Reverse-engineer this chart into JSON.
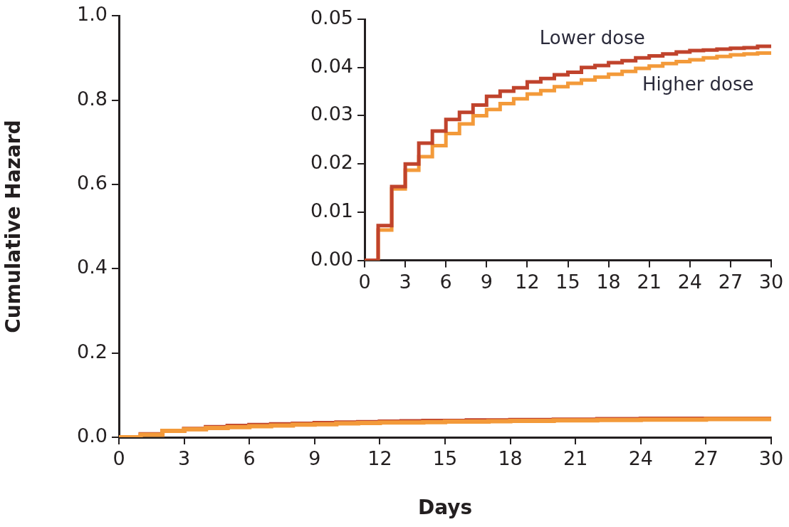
{
  "chart_data": [
    {
      "type": "step",
      "xlabel": "Days",
      "ylabel": "Cumulative Hazard",
      "x": [
        0,
        1,
        2,
        3,
        4,
        5,
        6,
        7,
        8,
        9,
        10,
        11,
        12,
        13,
        14,
        15,
        16,
        17,
        18,
        19,
        20,
        21,
        22,
        23,
        24,
        25,
        26,
        27,
        28,
        29,
        30
      ],
      "series": [
        {
          "color": "#c0432c",
          "values": [
            0,
            0.007,
            0.015,
            0.02,
            0.024,
            0.027,
            0.029,
            0.031,
            0.032,
            0.034,
            0.035,
            0.036,
            0.037,
            0.038,
            0.039,
            0.039,
            0.04,
            0.04,
            0.041,
            0.041,
            0.042,
            0.042,
            0.043,
            0.043,
            0.044,
            0.044,
            0.044,
            0.044,
            0.044,
            0.044,
            0.045
          ]
        },
        {
          "color": "#f39a3a",
          "values": [
            0,
            0.006,
            0.015,
            0.019,
            0.022,
            0.024,
            0.026,
            0.028,
            0.03,
            0.031,
            0.033,
            0.034,
            0.035,
            0.035,
            0.036,
            0.037,
            0.037,
            0.038,
            0.039,
            0.039,
            0.04,
            0.04,
            0.041,
            0.041,
            0.042,
            0.042,
            0.042,
            0.043,
            0.043,
            0.043,
            0.043
          ]
        }
      ],
      "xlim": [
        0,
        30
      ],
      "xticks": [
        0,
        3,
        6,
        9,
        12,
        15,
        18,
        21,
        24,
        27,
        30
      ],
      "ylim": [
        0,
        1
      ],
      "yticks": [
        {
          "value": 0,
          "label": "0.0"
        },
        {
          "value": 0.2,
          "label": "0.2"
        },
        {
          "value": 0.4,
          "label": "0.4"
        },
        {
          "value": 0.6,
          "label": "0.6"
        },
        {
          "value": 0.8,
          "label": "0.8"
        },
        {
          "value": 1,
          "label": "1.0"
        }
      ],
      "grid": false,
      "legend": false,
      "marker": "none"
    },
    {
      "type": "step",
      "x": [
        0,
        1,
        2,
        3,
        4,
        5,
        6,
        7,
        8,
        9,
        10,
        11,
        12,
        13,
        14,
        15,
        16,
        17,
        18,
        19,
        20,
        21,
        22,
        23,
        24,
        25,
        26,
        27,
        28,
        29,
        30
      ],
      "series": [
        {
          "name": "Lower dose",
          "color": "#c0432c",
          "values": [
            0,
            0.0072,
            0.0153,
            0.02,
            0.0243,
            0.0268,
            0.0292,
            0.0307,
            0.0322,
            0.034,
            0.0351,
            0.0358,
            0.037,
            0.0377,
            0.0385,
            0.039,
            0.04,
            0.0404,
            0.041,
            0.0414,
            0.042,
            0.0424,
            0.0428,
            0.0432,
            0.0435,
            0.0436,
            0.0438,
            0.044,
            0.0441,
            0.0444,
            0.0445
          ]
        },
        {
          "name": "Higher dose",
          "color": "#f39a3a",
          "values": [
            0,
            0.0063,
            0.0148,
            0.0187,
            0.0215,
            0.0238,
            0.0263,
            0.0283,
            0.03,
            0.0313,
            0.0325,
            0.0335,
            0.0345,
            0.0352,
            0.036,
            0.0367,
            0.0374,
            0.038,
            0.0386,
            0.0392,
            0.0398,
            0.0403,
            0.0408,
            0.0412,
            0.0416,
            0.042,
            0.0423,
            0.0426,
            0.0428,
            0.043,
            0.0432
          ]
        }
      ],
      "xlim": [
        0,
        30
      ],
      "xticks": [
        0,
        3,
        6,
        9,
        12,
        15,
        18,
        21,
        24,
        27,
        30
      ],
      "ylim": [
        0,
        0.05
      ],
      "yticks": [
        {
          "value": 0,
          "label": "0.00"
        },
        {
          "value": 0.01,
          "label": "0.01"
        },
        {
          "value": 0.02,
          "label": "0.02"
        },
        {
          "value": 0.03,
          "label": "0.03"
        },
        {
          "value": 0.04,
          "label": "0.04"
        },
        {
          "value": 0.05,
          "label": "0.05"
        }
      ],
      "grid": false,
      "legend": false,
      "marker": "none"
    }
  ]
}
